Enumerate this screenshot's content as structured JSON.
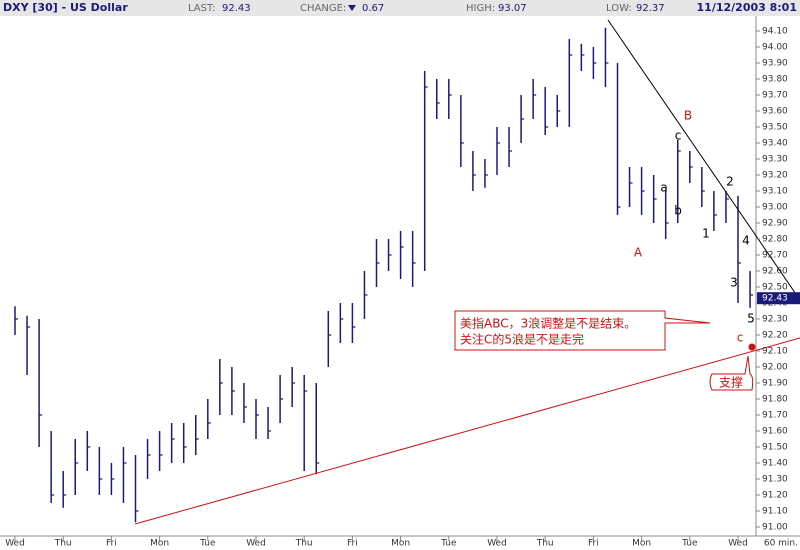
{
  "header": {
    "title": "DXY [30] - US Dollar",
    "last_label": "LAST:",
    "last": "92.43",
    "change_label": "CHANGE:",
    "change": "0.67",
    "high_label": "HIGH:",
    "high": "93.07",
    "low_label": "LOW:",
    "low": "92.37",
    "datetime": "11/12/2003 8:01"
  },
  "annotations": [
    "A",
    "B",
    "c",
    "a",
    "b",
    "1",
    "2",
    "3",
    "4",
    "5",
    "c",
    "美指ABC，3浪调整是不是结束。",
    "关注C的5浪是不是走完",
    "支撑"
  ],
  "chart_data": {
    "type": "ohlc",
    "x_unit": "60 min.",
    "color": "#1a1a7a",
    "x": [
      "Wed",
      null,
      null,
      null,
      "Thu",
      null,
      null,
      null,
      "Fri",
      null,
      null,
      null,
      "Mon",
      null,
      null,
      null,
      "Tue",
      null,
      null,
      null,
      "Wed",
      null,
      null,
      null,
      "Thu",
      null,
      null,
      null,
      "Fri",
      null,
      null,
      null,
      "Mon",
      null,
      null,
      null,
      "Tue",
      null,
      null,
      null,
      "Wed",
      null,
      null,
      null,
      "Thu",
      null,
      null,
      null,
      "Fri",
      null,
      null,
      null,
      "Mon",
      null,
      null,
      null,
      "Tue",
      null,
      null,
      null,
      "Wed",
      null
    ],
    "series": [
      {
        "name": "DXY",
        "values": [
          92.3,
          92.25,
          91.7,
          91.2,
          91.2,
          91.4,
          91.5,
          91.3,
          91.3,
          91.4,
          91.1,
          91.45,
          91.45,
          91.55,
          91.5,
          91.55,
          91.65,
          91.9,
          91.85,
          91.75,
          91.7,
          91.6,
          91.8,
          91.9,
          91.85,
          91.4,
          92.2,
          92.3,
          92.25,
          92.45,
          92.65,
          92.7,
          92.75,
          92.65,
          93.75,
          93.65,
          93.7,
          93.4,
          93.2,
          93.2,
          93.4,
          93.35,
          93.55,
          93.7,
          93.5,
          93.6,
          93.95,
          93.95,
          93.9,
          93.9,
          93.0,
          93.15,
          93.1,
          93.05,
          92.9,
          93.35,
          93.25,
          93.1,
          92.95,
          93.05,
          92.65,
          92.45
        ],
        "high": [
          92.38,
          92.32,
          92.3,
          91.6,
          91.35,
          91.55,
          91.6,
          91.5,
          91.4,
          91.5,
          91.45,
          91.55,
          91.6,
          91.65,
          91.65,
          91.7,
          91.8,
          92.05,
          92.0,
          91.9,
          91.8,
          91.75,
          91.95,
          92.0,
          91.95,
          91.9,
          92.35,
          92.4,
          92.4,
          92.6,
          92.8,
          92.8,
          92.85,
          92.85,
          93.85,
          93.8,
          93.8,
          93.7,
          93.35,
          93.3,
          93.5,
          93.5,
          93.7,
          93.8,
          93.75,
          93.7,
          94.05,
          94.02,
          94.0,
          94.12,
          93.9,
          93.25,
          93.25,
          93.2,
          93.1,
          93.42,
          93.35,
          93.25,
          93.1,
          93.1,
          93.07,
          92.6
        ],
        "low": [
          92.2,
          91.95,
          91.5,
          91.15,
          91.12,
          91.2,
          91.35,
          91.2,
          91.2,
          91.15,
          91.03,
          91.3,
          91.35,
          91.4,
          91.4,
          91.45,
          91.55,
          91.7,
          91.7,
          91.65,
          91.55,
          91.55,
          91.65,
          91.75,
          91.35,
          91.33,
          92.0,
          92.15,
          92.15,
          92.3,
          92.5,
          92.6,
          92.55,
          92.5,
          92.6,
          93.55,
          93.55,
          93.25,
          93.1,
          93.12,
          93.2,
          93.25,
          93.4,
          93.55,
          93.45,
          93.5,
          93.5,
          93.85,
          93.8,
          93.75,
          92.95,
          93.0,
          92.95,
          92.9,
          92.8,
          92.9,
          93.15,
          93.0,
          92.85,
          92.9,
          92.4,
          92.37
        ]
      }
    ],
    "ylim": [
      91.0,
      94.1
    ],
    "yticks": [
      {
        "value": 91.0,
        "label": "91.00"
      },
      {
        "value": 91.1,
        "label": "91.10"
      },
      {
        "value": 91.2,
        "label": "91.20"
      },
      {
        "value": 91.3,
        "label": "91.30"
      },
      {
        "value": 91.4,
        "label": "91.40"
      },
      {
        "value": 91.5,
        "label": "91.50"
      },
      {
        "value": 91.6,
        "label": "91.60"
      },
      {
        "value": 91.7,
        "label": "91.70"
      },
      {
        "value": 91.8,
        "label": "91.80"
      },
      {
        "value": 91.9,
        "label": "91.90"
      },
      {
        "value": 92.0,
        "label": "92.00"
      },
      {
        "value": 92.1,
        "label": "92.10"
      },
      {
        "value": 92.2,
        "label": "92.20"
      },
      {
        "value": 92.3,
        "label": "92.30"
      },
      {
        "value": 92.4,
        "label": "92.40"
      },
      {
        "value": 92.5,
        "label": "92.50"
      },
      {
        "value": 92.6,
        "label": "92.60"
      },
      {
        "value": 92.7,
        "label": "92.70"
      },
      {
        "value": 92.8,
        "label": "92.80"
      },
      {
        "value": 92.9,
        "label": "92.90"
      },
      {
        "value": 93.0,
        "label": "93.00"
      },
      {
        "value": 93.1,
        "label": "93.10"
      },
      {
        "value": 93.2,
        "label": "93.20"
      },
      {
        "value": 93.3,
        "label": "93.30"
      },
      {
        "value": 93.4,
        "label": "93.40"
      },
      {
        "value": 93.5,
        "label": "93.50"
      },
      {
        "value": 93.6,
        "label": "93.60"
      },
      {
        "value": 93.7,
        "label": "93.70"
      },
      {
        "value": 93.8,
        "label": "93.80"
      },
      {
        "value": 93.9,
        "label": "93.90"
      },
      {
        "value": 94.0,
        "label": "94.00"
      },
      {
        "value": 94.1,
        "label": "94.10"
      }
    ]
  }
}
